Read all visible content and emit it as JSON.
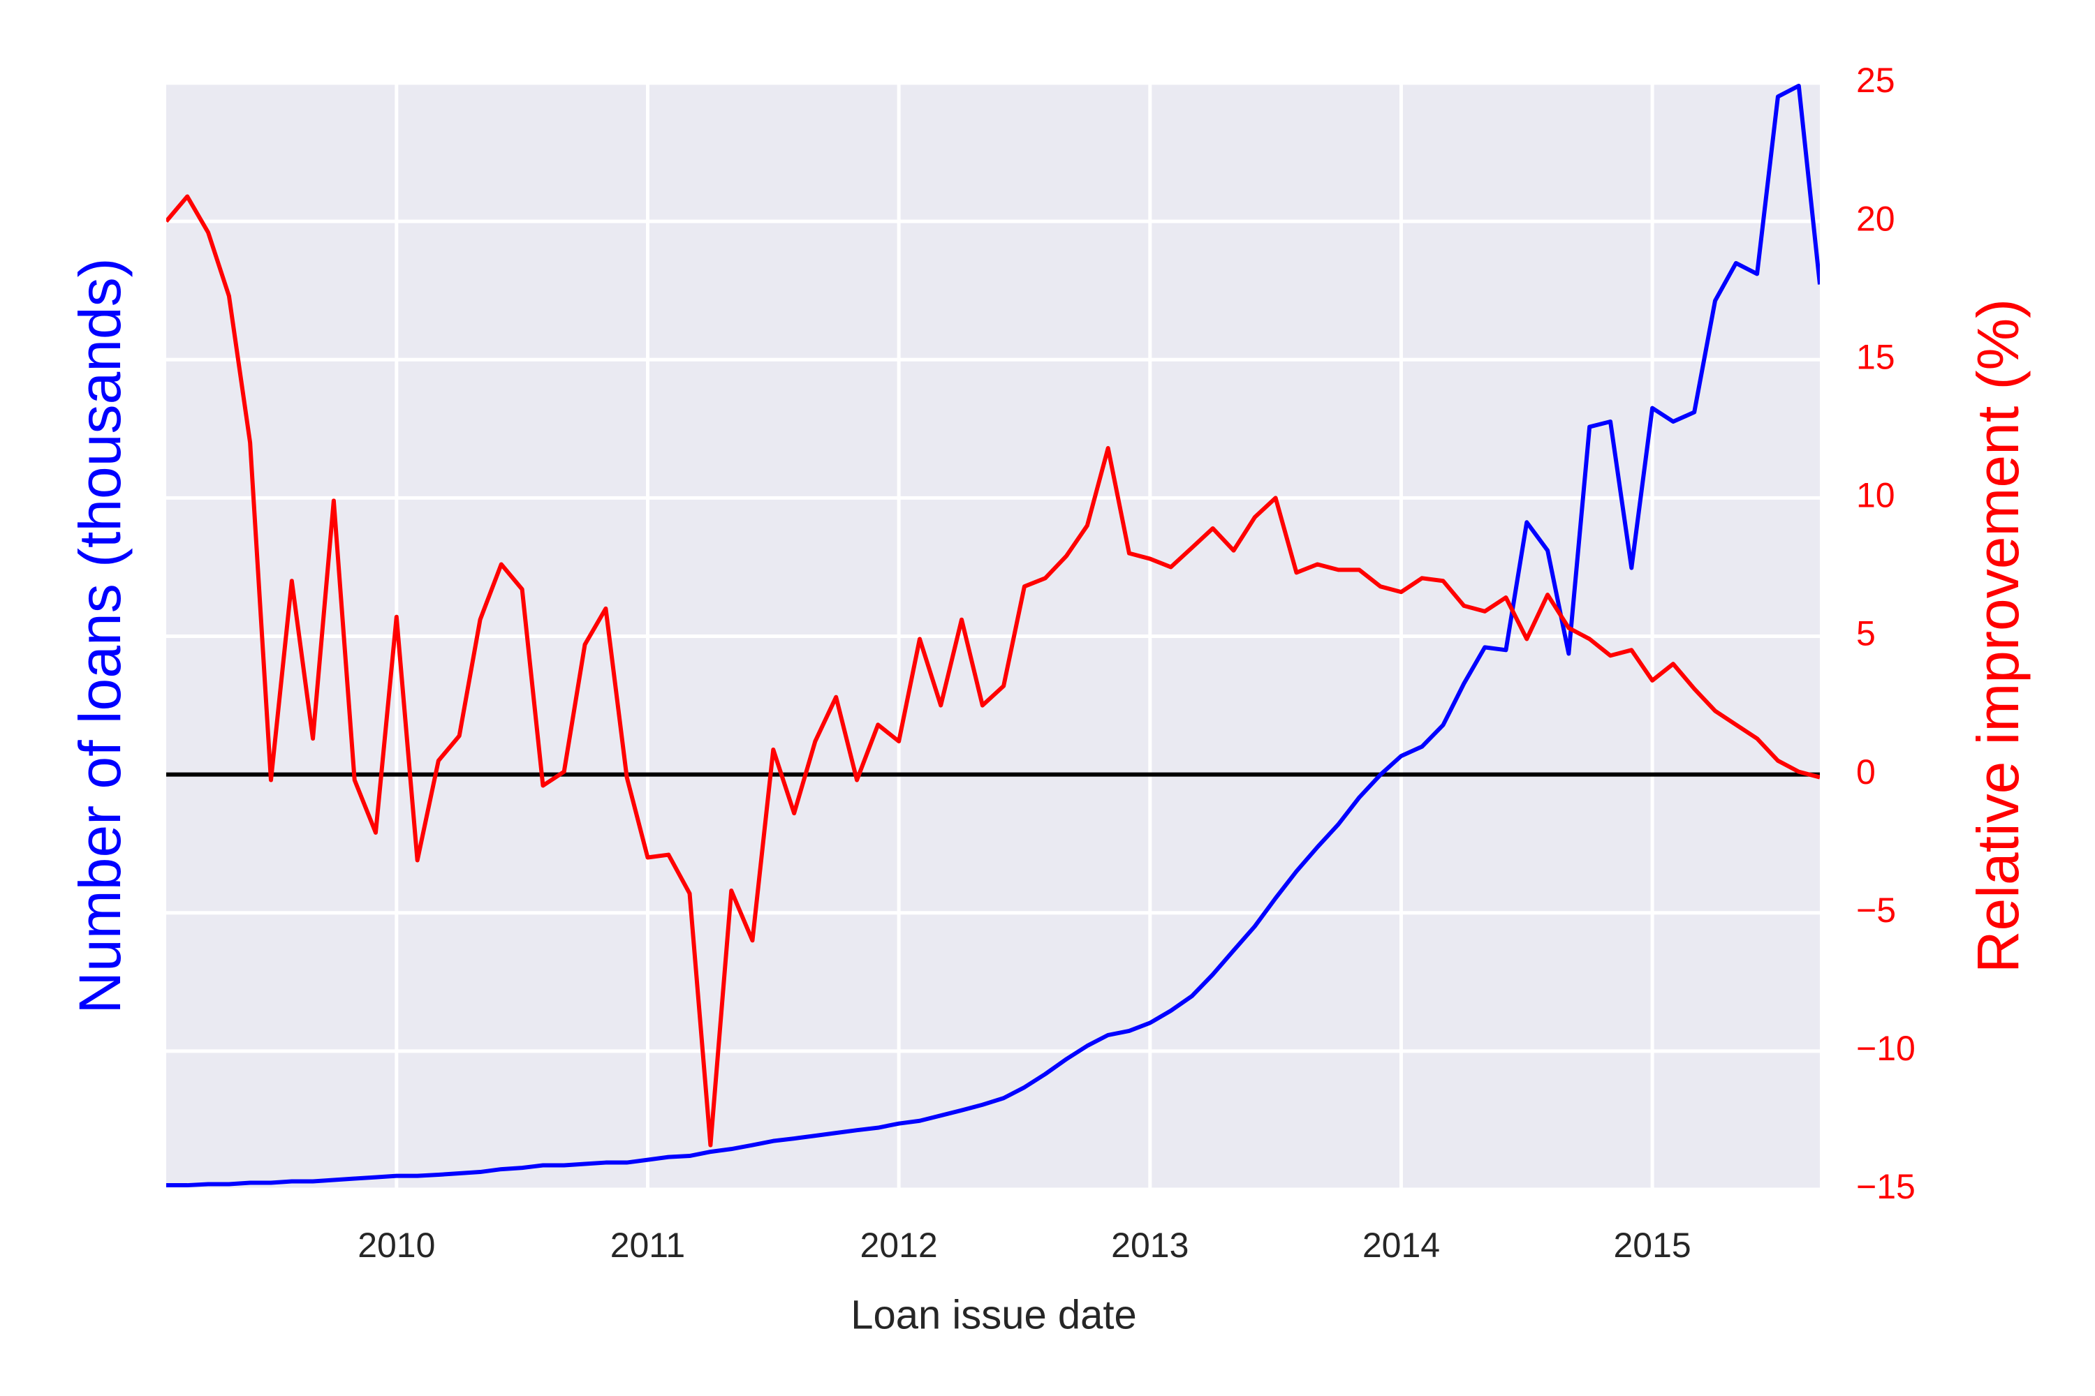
{
  "chart_data": {
    "type": "line",
    "xlabel": "Loan issue date",
    "ylabel": "Number of loans (thousands)",
    "y2label": "Relative improvement (%)",
    "ylabel_color": "#0000ff",
    "y2label_color": "#ff0000",
    "x": [
      2009.083,
      2009.167,
      2009.25,
      2009.333,
      2009.417,
      2009.5,
      2009.583,
      2009.667,
      2009.75,
      2009.833,
      2009.917,
      2010,
      2010.083,
      2010.167,
      2010.25,
      2010.333,
      2010.417,
      2010.5,
      2010.583,
      2010.667,
      2010.75,
      2010.833,
      2010.917,
      2011,
      2011.083,
      2011.167,
      2011.25,
      2011.333,
      2011.417,
      2011.5,
      2011.583,
      2011.667,
      2011.75,
      2011.833,
      2011.917,
      2012,
      2012.083,
      2012.167,
      2012.25,
      2012.333,
      2012.417,
      2012.5,
      2012.583,
      2012.667,
      2012.75,
      2012.833,
      2012.917,
      2013,
      2013.083,
      2013.167,
      2013.25,
      2013.333,
      2013.417,
      2013.5,
      2013.583,
      2013.667,
      2013.75,
      2013.833,
      2013.917,
      2014,
      2014.083,
      2014.167,
      2014.25,
      2014.333,
      2014.417,
      2014.5,
      2014.583,
      2014.667,
      2014.75,
      2014.833,
      2014.917,
      2015,
      2015.083,
      2015.167,
      2015.25,
      2015.333,
      2015.417,
      2015.5,
      2015.583,
      2015.667
    ],
    "series": [
      {
        "color": "#0000ff",
        "axis": "y",
        "values": [
          0.15,
          0.15,
          0.19,
          0.19,
          0.24,
          0.24,
          0.29,
          0.29,
          0.34,
          0.39,
          0.44,
          0.49,
          0.49,
          0.53,
          0.58,
          0.63,
          0.73,
          0.78,
          0.87,
          0.87,
          0.92,
          0.97,
          0.97,
          1.07,
          1.17,
          1.21,
          1.36,
          1.46,
          1.6,
          1.75,
          1.84,
          1.94,
          2.04,
          2.14,
          2.23,
          2.38,
          2.48,
          2.67,
          2.86,
          3.06,
          3.3,
          3.69,
          4.17,
          4.71,
          5.19,
          5.58,
          5.73,
          6.02,
          6.46,
          6.99,
          7.77,
          8.64,
          9.51,
          10.53,
          11.5,
          12.38,
          13.2,
          14.17,
          14.99,
          15.67,
          16.01,
          16.79,
          18.29,
          19.6,
          19.5,
          24.12,
          23.1,
          19.37,
          27.57,
          27.76,
          22.47,
          28.25,
          27.76,
          28.1,
          32.13,
          33.49,
          33.1,
          39.51,
          39.9,
          32.72
        ]
      },
      {
        "color": "#ff0000",
        "axis": "y2",
        "values": [
          20.0,
          20.9,
          19.6,
          17.3,
          12.0,
          -0.2,
          7.0,
          1.3,
          9.9,
          -0.2,
          -2.1,
          5.7,
          -3.1,
          0.5,
          1.4,
          5.6,
          7.6,
          6.7,
          -0.4,
          0.1,
          4.7,
          6.0,
          -0.1,
          -3.0,
          -2.9,
          -4.3,
          -13.4,
          -4.2,
          -6.0,
          0.9,
          -1.4,
          1.2,
          2.8,
          -0.2,
          1.8,
          1.2,
          4.9,
          2.5,
          5.6,
          2.5,
          3.2,
          6.8,
          7.1,
          7.9,
          9.0,
          11.8,
          8.0,
          7.8,
          7.5,
          8.2,
          8.9,
          8.1,
          9.3,
          10.0,
          7.3,
          7.6,
          7.4,
          7.4,
          6.8,
          6.6,
          7.1,
          7.0,
          6.1,
          5.9,
          6.4,
          4.9,
          6.5,
          5.3,
          4.9,
          4.3,
          4.5,
          3.4,
          4.0,
          3.1,
          2.3,
          1.8,
          1.3,
          0.5,
          0.1,
          -0.1
        ]
      }
    ],
    "xlim": [
      2009.083,
      2015.667
    ],
    "xticks": [
      2010,
      2011,
      2012,
      2013,
      2014,
      2015
    ],
    "ylim": [
      0,
      40
    ],
    "y2lim": [
      -15,
      25
    ],
    "y2ticks": [
      {
        "value": -15,
        "label": "−15"
      },
      {
        "value": -10,
        "label": "−10"
      },
      {
        "value": -5,
        "label": "−5"
      },
      0,
      5,
      10,
      15,
      20,
      25
    ],
    "reference_line": {
      "value": 0,
      "axis": "y2",
      "color": "#000000"
    },
    "grid": true
  }
}
